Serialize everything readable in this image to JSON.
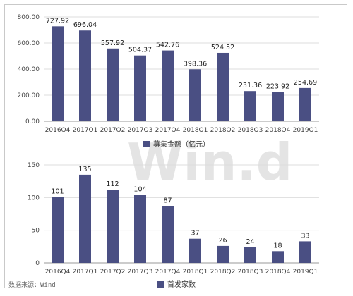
{
  "watermark": "Win.d",
  "source_text": "数据来源：Wind",
  "colors": {
    "bar": "#4a4f83",
    "grid": "#dddddd",
    "axis": "#999999"
  },
  "chart_data": [
    {
      "type": "bar",
      "categories": [
        "2016Q4",
        "2017Q1",
        "2017Q2",
        "2017Q3",
        "2017Q4",
        "2018Q1",
        "2018Q2",
        "2018Q3",
        "2018Q4",
        "2019Q1"
      ],
      "series": [
        {
          "name": "募集金额（亿元）",
          "values": [
            727.92,
            696.04,
            557.92,
            504.37,
            542.76,
            398.36,
            524.52,
            231.36,
            223.92,
            254.69
          ]
        }
      ],
      "value_labels": [
        "727.92",
        "696.04",
        "557.92",
        "504.37",
        "542.76",
        "398.36",
        "524.52",
        "231.36",
        "223.92",
        "254.69"
      ],
      "y_ticks": [
        "0.00",
        "200.00",
        "400.00",
        "600.00",
        "800.00"
      ],
      "ylim": [
        0,
        800
      ],
      "grid": true,
      "legend_position": "bottom-center"
    },
    {
      "type": "bar",
      "categories": [
        "2016Q4",
        "2017Q1",
        "2017Q2",
        "2017Q3",
        "2017Q4",
        "2018Q1",
        "2018Q2",
        "2018Q3",
        "2018Q4",
        "2019Q1"
      ],
      "series": [
        {
          "name": "首发家数",
          "values": [
            101,
            135,
            112,
            104,
            87,
            37,
            26,
            24,
            18,
            33
          ]
        }
      ],
      "value_labels": [
        "101",
        "135",
        "112",
        "104",
        "87",
        "37",
        "26",
        "24",
        "18",
        "33"
      ],
      "y_ticks": [
        "0",
        "50",
        "100",
        "150"
      ],
      "ylim": [
        0,
        150
      ],
      "grid": true,
      "legend_position": "bottom-center"
    }
  ]
}
